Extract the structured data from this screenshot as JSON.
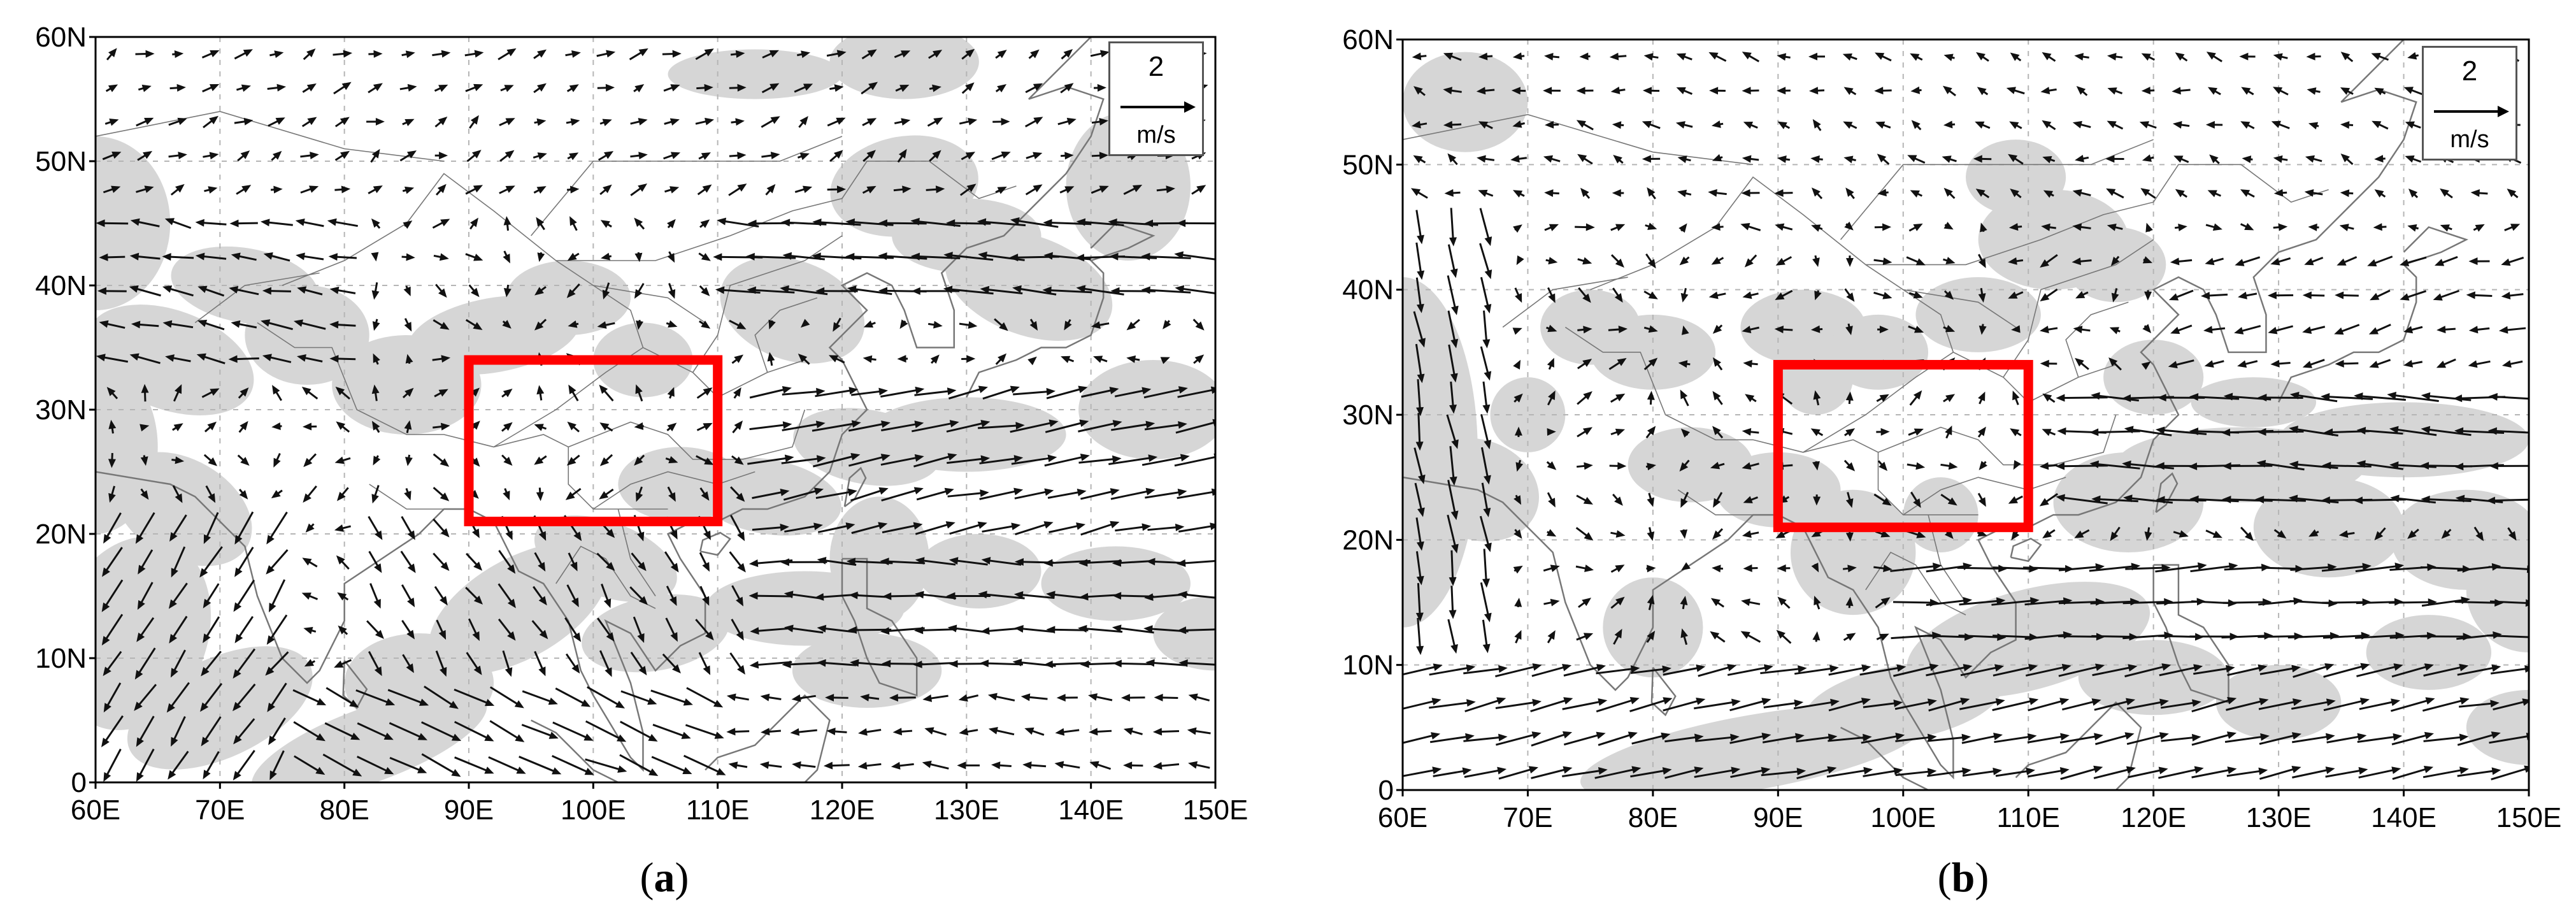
{
  "panels": [
    {
      "id": "a",
      "caption_open": "(",
      "caption_letter": "a",
      "caption_close": ")",
      "lon_ticks": [
        "60E",
        "70E",
        "80E",
        "90E",
        "100E",
        "110E",
        "120E",
        "130E",
        "140E",
        "150E"
      ],
      "lat_ticks": [
        "0",
        "10N",
        "20N",
        "30N",
        "40N",
        "50N",
        "60N"
      ],
      "reference_vector": {
        "value": "2",
        "unit": "m/s"
      },
      "region_box": {
        "lon": [
          90,
          110
        ],
        "lat": [
          21,
          34
        ]
      }
    },
    {
      "id": "b",
      "caption_open": "(",
      "caption_letter": "b",
      "caption_close": ")",
      "lon_ticks": [
        "60E",
        "70E",
        "80E",
        "90E",
        "100E",
        "110E",
        "120E",
        "130E",
        "140E",
        "150E"
      ],
      "lat_ticks": [
        "0",
        "10N",
        "20N",
        "30N",
        "40N",
        "50N",
        "60N"
      ],
      "reference_vector": {
        "value": "2",
        "unit": "m/s"
      },
      "region_box": {
        "lon": [
          90,
          110
        ],
        "lat": [
          21,
          34
        ]
      }
    }
  ],
  "colors": {
    "shading": "#d6d6d6",
    "box": "#ff0000",
    "arrow": "#111111",
    "coast": "#777777",
    "grid": "#b5b5b5"
  }
}
